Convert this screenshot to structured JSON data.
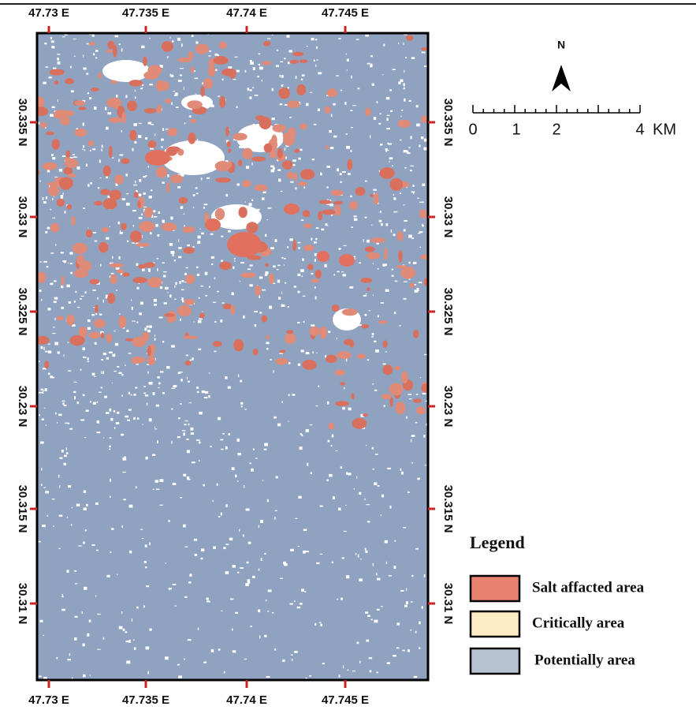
{
  "map": {
    "top_labels": [
      "47.73 E",
      "47.735 E",
      "47.74 E",
      "47.745 E"
    ],
    "bottom_labels": [
      "47.73 E",
      "47.735 E",
      "47.74 E",
      "47.745 E"
    ],
    "left_labels": [
      "30.335 N",
      "30.33 N",
      "30.325 N",
      "30.23 N",
      "30.315 N",
      "30.31 N"
    ],
    "right_labels": [
      "30.335 N",
      "30.33 N",
      "30.325 N",
      "30.23 N",
      "30.315 N",
      "30.31 N"
    ],
    "north": "N",
    "scale_labels": [
      "0",
      "1",
      "2",
      "4"
    ],
    "scale_unit": "KM",
    "legend": {
      "title": "Legend",
      "items": [
        {
          "label": "Salt affacted area",
          "color": "#e8826e"
        },
        {
          "label": "Critically area",
          "color": "#fdebc4"
        },
        {
          "label": "Potentially area",
          "color": "#b6c2d2"
        }
      ]
    }
  }
}
